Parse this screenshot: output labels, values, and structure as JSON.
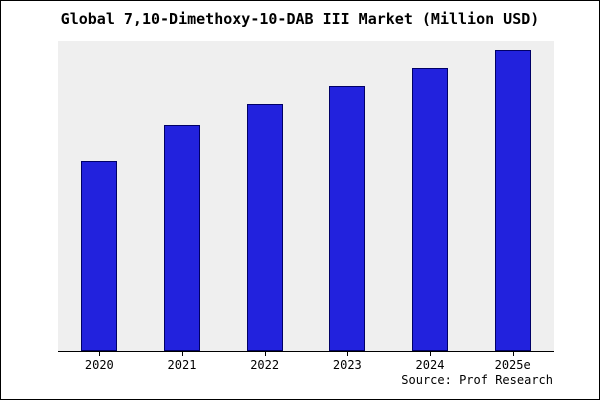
{
  "title": "Global 7,10-Dimethoxy-10-DAB III Market (Million USD)",
  "source_caption": "Source: Prof Research",
  "colors": {
    "bar_fill": "#2222dd",
    "bar_edge": "#000066",
    "plot_bg": "#efefef",
    "axis": "#000000",
    "page_bg": "#ffffff"
  },
  "chart_data": {
    "type": "bar",
    "title": "Global 7,10-Dimethoxy-10-DAB III Market (Million USD)",
    "categories": [
      "2020",
      "2021",
      "2022",
      "2023",
      "2024",
      "2025e"
    ],
    "values": [
      63,
      75,
      82,
      88,
      94,
      100
    ],
    "xlabel": "",
    "ylabel": "",
    "ylim": [
      0,
      103
    ],
    "grid": false,
    "legend": false,
    "caption": "Source: Prof Research"
  }
}
